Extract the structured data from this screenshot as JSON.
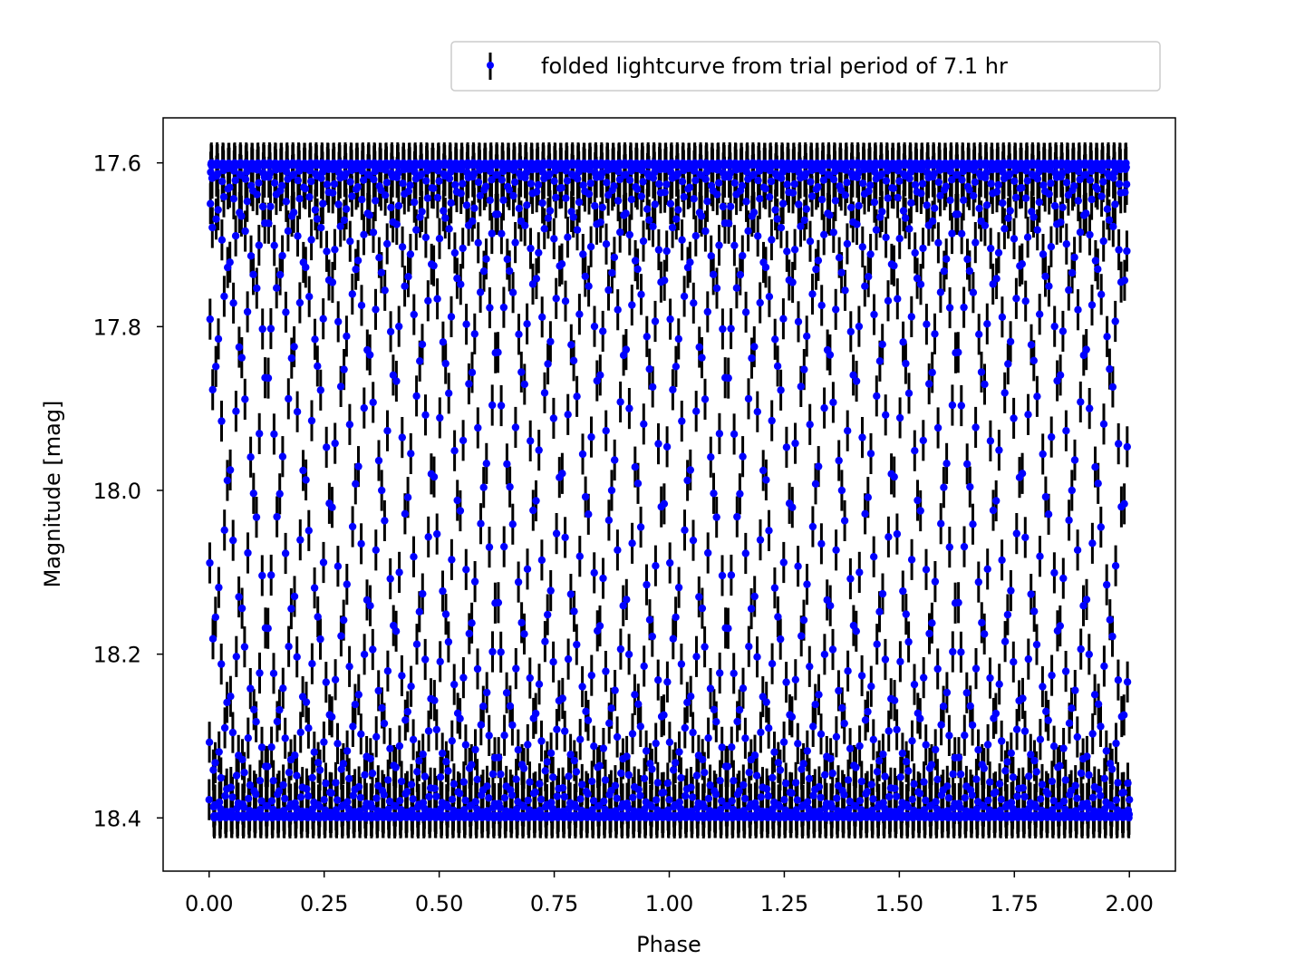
{
  "chart_data": {
    "type": "scatter",
    "title": "",
    "xlabel": "Phase",
    "ylabel": "Magnitude [mag]",
    "xlim": [
      -0.1,
      2.1
    ],
    "ylim": [
      18.465,
      17.545
    ],
    "y_inverted": true,
    "grid": false,
    "legend_position": "above-right",
    "xticks": [
      0.0,
      0.25,
      0.5,
      0.75,
      1.0,
      1.25,
      1.5,
      1.75,
      2.0
    ],
    "xtick_labels": [
      "0.00",
      "0.25",
      "0.50",
      "0.75",
      "1.00",
      "1.25",
      "1.50",
      "1.75",
      "2.00"
    ],
    "yticks": [
      17.6,
      17.8,
      18.0,
      18.2,
      18.4
    ],
    "ytick_labels": [
      "17.6",
      "17.8",
      "18.0",
      "18.2",
      "18.4"
    ],
    "series": [
      {
        "name": "folded lightcurve from trial period of 7.1 hr",
        "marker_color": "#0000ff",
        "errorbar_color": "#000000",
        "yerr": 0.025,
        "mag_bright": 17.6,
        "mag_faint": 18.4,
        "phase_of_faint_minimum": 0.125,
        "phase_of_bright_maximum": 0.64,
        "x_min": 0.0,
        "x_max": 2.0
      }
    ]
  }
}
